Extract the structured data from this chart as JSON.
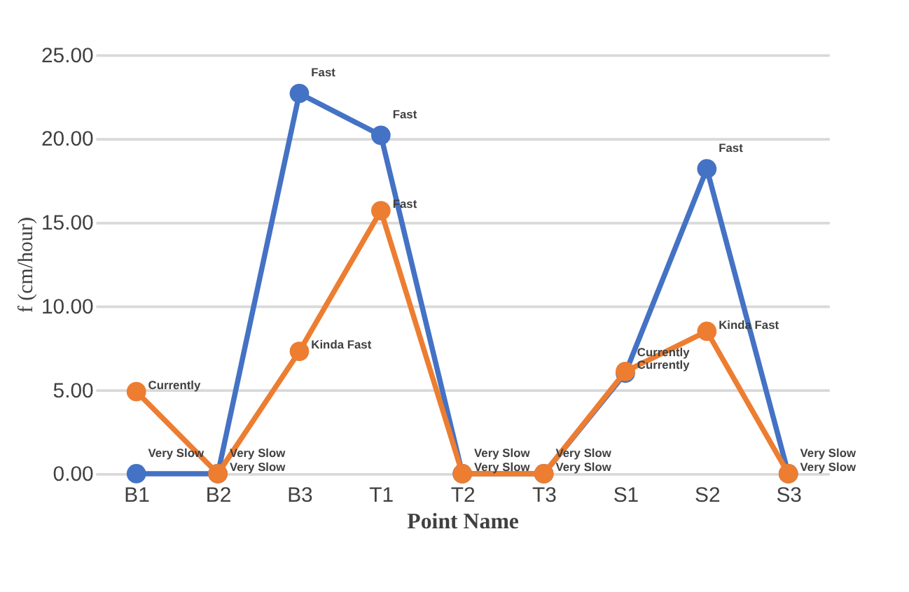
{
  "chart_data": {
    "type": "line",
    "xlabel": "Point Name",
    "ylabel": "f (cm/hour)",
    "categories": [
      "B1",
      "B2",
      "B3",
      "T1",
      "T2",
      "T3",
      "S1",
      "S2",
      "S3"
    ],
    "series": [
      {
        "color": "#4472c4",
        "values": [
          0,
          0,
          22.7,
          20.2,
          0,
          0,
          6.0,
          18.2,
          0
        ],
        "value_labels": [
          "Very Slow",
          "Very Slow",
          "Fast",
          "Fast",
          "Very Slow",
          "Very Slow",
          "Currently",
          "Fast",
          "Very Slow"
        ]
      },
      {
        "color": "#ed7d31",
        "values": [
          4.9,
          0,
          7.3,
          15.7,
          0,
          0,
          6.1,
          8.5,
          0
        ],
        "value_labels": [
          "Currently",
          "Very Slow",
          "Kinda Fast",
          "Fast",
          "Very Slow",
          "Very Slow",
          "Currently",
          "Kinda Fast",
          "Very Slow"
        ]
      }
    ],
    "ylim": [
      0,
      25
    ],
    "yticks": [
      {
        "value": 0,
        "label": "0.00"
      },
      {
        "value": 5,
        "label": "5.00"
      },
      {
        "value": 10,
        "label": "10.00"
      },
      {
        "value": 15,
        "label": "15.00"
      },
      {
        "value": 20,
        "label": "20.00"
      },
      {
        "value": 25,
        "label": "25.00"
      }
    ],
    "grid": "y",
    "marker": "circle",
    "line_style": "solid"
  }
}
